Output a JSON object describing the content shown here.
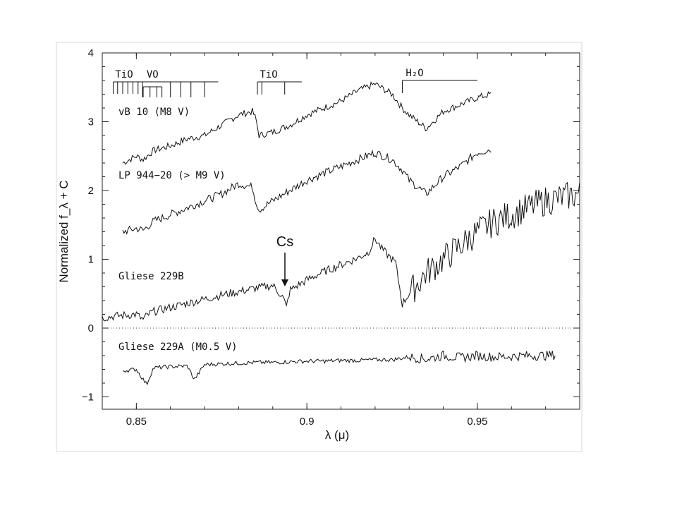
{
  "chart_data": {
    "type": "line",
    "title": "",
    "xlabel": "λ (μ)",
    "ylabel": "Normalized f_λ + C",
    "xlim": [
      0.84,
      0.98
    ],
    "ylim": [
      -1.15,
      4.0
    ],
    "x_ticks": [
      "0.85",
      "0.9",
      "0.95"
    ],
    "y_ticks": [
      "−1",
      "0",
      "1",
      "2",
      "3",
      "4"
    ],
    "grid": false,
    "reference_line": {
      "y": 0,
      "style": "dotted"
    },
    "colors": {
      "line": "#111111",
      "axis": "#222222",
      "background": "#ffffff"
    },
    "series": [
      {
        "name": "vB 10 (M8 V)",
        "x": [
          0.846,
          0.85,
          0.852,
          0.855,
          0.86,
          0.865,
          0.87,
          0.875,
          0.88,
          0.884,
          0.885,
          0.886,
          0.89,
          0.895,
          0.9,
          0.905,
          0.91,
          0.915,
          0.92,
          0.925,
          0.928,
          0.93,
          0.935,
          0.94,
          0.945,
          0.95,
          0.954
        ],
        "y": [
          2.4,
          2.5,
          2.45,
          2.58,
          2.65,
          2.75,
          2.8,
          2.95,
          3.1,
          3.15,
          3.05,
          2.8,
          2.85,
          2.95,
          3.1,
          3.2,
          3.3,
          3.45,
          3.55,
          3.4,
          3.2,
          3.1,
          2.9,
          3.15,
          3.25,
          3.35,
          3.4
        ]
      },
      {
        "name": "LP 944−20 (> M9 V)",
        "x": [
          0.846,
          0.85,
          0.852,
          0.855,
          0.86,
          0.865,
          0.87,
          0.875,
          0.88,
          0.884,
          0.885,
          0.886,
          0.89,
          0.895,
          0.9,
          0.905,
          0.91,
          0.915,
          0.92,
          0.925,
          0.928,
          0.93,
          0.935,
          0.94,
          0.945,
          0.95,
          0.954
        ],
        "y": [
          1.4,
          1.45,
          1.42,
          1.55,
          1.65,
          1.75,
          1.85,
          1.95,
          2.1,
          2.05,
          1.85,
          1.72,
          1.85,
          2.0,
          2.15,
          2.25,
          2.35,
          2.45,
          2.55,
          2.45,
          2.3,
          2.15,
          1.95,
          2.2,
          2.35,
          2.55,
          2.6
        ]
      },
      {
        "name": "Gliese 229B",
        "x": [
          0.84,
          0.845,
          0.85,
          0.852,
          0.853,
          0.855,
          0.86,
          0.865,
          0.87,
          0.875,
          0.88,
          0.885,
          0.89,
          0.893,
          0.894,
          0.895,
          0.9,
          0.905,
          0.91,
          0.915,
          0.918,
          0.92,
          0.922,
          0.924,
          0.926,
          0.928,
          0.93,
          0.935,
          0.94,
          0.945,
          0.95,
          0.955,
          0.96,
          0.965,
          0.97,
          0.975,
          0.98
        ],
        "y": [
          0.15,
          0.18,
          0.2,
          0.12,
          0.18,
          0.24,
          0.3,
          0.36,
          0.42,
          0.48,
          0.53,
          0.58,
          0.62,
          0.45,
          0.3,
          0.55,
          0.7,
          0.82,
          0.92,
          1.02,
          1.1,
          1.3,
          1.15,
          1.05,
          0.95,
          0.35,
          0.5,
          0.8,
          1.0,
          1.2,
          1.4,
          1.55,
          1.65,
          1.75,
          1.85,
          1.9,
          1.95
        ]
      },
      {
        "name": "Gliese 229A (M0.5 V)",
        "x": [
          0.846,
          0.85,
          0.853,
          0.855,
          0.86,
          0.865,
          0.867,
          0.87,
          0.875,
          0.88,
          0.885,
          0.89,
          0.895,
          0.9,
          0.905,
          0.91,
          0.915,
          0.92,
          0.925,
          0.93,
          0.935,
          0.94,
          0.945,
          0.95,
          0.955,
          0.96,
          0.965,
          0.97,
          0.973
        ],
        "y": [
          -0.62,
          -0.6,
          -0.82,
          -0.58,
          -0.56,
          -0.55,
          -0.75,
          -0.53,
          -0.52,
          -0.51,
          -0.5,
          -0.5,
          -0.49,
          -0.48,
          -0.48,
          -0.47,
          -0.47,
          -0.46,
          -0.46,
          -0.42,
          -0.45,
          -0.4,
          -0.43,
          -0.4,
          -0.42,
          -0.41,
          -0.4,
          -0.4,
          -0.39
        ]
      }
    ],
    "annotations": {
      "labels": [
        "vB 10 (M8 V)",
        "LP 944−20 (> M9 V)",
        "Gliese 229B",
        "Gliese 229A (M0.5 V)"
      ],
      "bands": [
        {
          "name": "TiO",
          "x_range": [
            0.843,
            0.851
          ]
        },
        {
          "name": "VO",
          "x_range": [
            0.8525,
            0.873
          ]
        },
        {
          "name": "TiO",
          "x_range": [
            0.885,
            0.898
          ]
        },
        {
          "name": "H₂O",
          "x_range": [
            0.928,
            0.95
          ]
        }
      ],
      "arrow": {
        "label": "Cs",
        "x": 0.894
      }
    }
  }
}
